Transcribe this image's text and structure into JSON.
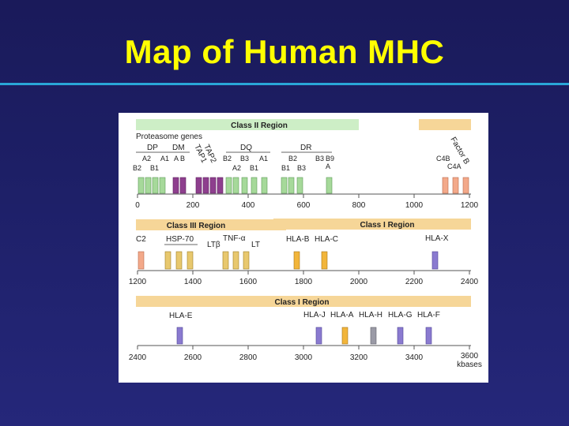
{
  "slide": {
    "title": "Map of Human MHC"
  },
  "colors": {
    "background": "#1d1f66",
    "title": "#ffff00",
    "rule": "#2aa6d8",
    "class_ii_gene": "#a6d99a",
    "proteasome_tap": "#8e3f8e",
    "class_iii_gene": "#f3a98a",
    "hsp_gene": "#e8c86e",
    "class_i_a": "#f2b53a",
    "class_i_e": "#8a7ad0",
    "class_i_h": "#9a9aa6",
    "region_band": "#f6d698",
    "class_ii_band": "#cdeec6"
  },
  "panels": [
    {
      "region_label": "Class II Region",
      "scale_ticks": [
        "0",
        "200",
        "400",
        "600",
        "800",
        "1000",
        "1200"
      ],
      "labels": [
        "Proteasome genes",
        "DP",
        "DM",
        "DQ",
        "DR",
        "TAP2",
        "TAP1",
        "Factor B",
        "A2",
        "A1",
        "A B",
        "B3",
        "A1",
        "B2",
        "B3",
        "B9",
        "A",
        "C4B",
        "C4A",
        "B2",
        "B1",
        "B2",
        "A2",
        "B1",
        "B1",
        "B3"
      ]
    },
    {
      "region_label": "Class III Region",
      "region_label_2": "Class I Region",
      "scale_ticks": [
        "1200",
        "1400",
        "1600",
        "1800",
        "2000",
        "2200",
        "2400"
      ],
      "labels": [
        "C2",
        "HSP-70",
        "TNF-α",
        "LTβ",
        "LT",
        "HLA-B",
        "HLA-C",
        "HLA-X"
      ]
    },
    {
      "region_label": "Class I Region",
      "scale_ticks": [
        "2400",
        "2600",
        "2800",
        "3000",
        "3200",
        "3400",
        "3600"
      ],
      "scale_unit": "kbases",
      "labels": [
        "HLA-E",
        "HLA-J",
        "HLA-A",
        "HLA-H",
        "HLA-G",
        "HLA-F"
      ]
    }
  ]
}
